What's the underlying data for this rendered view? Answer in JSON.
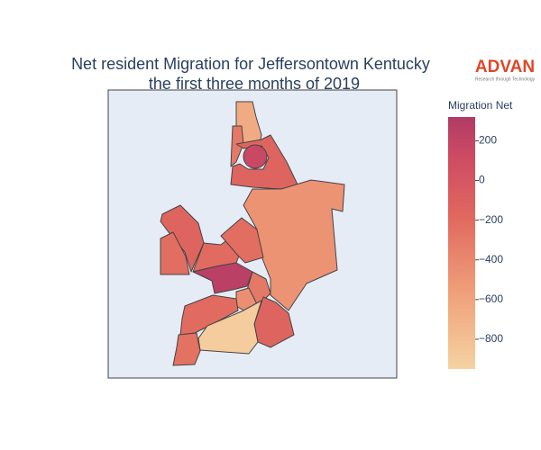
{
  "chart_data": {
    "type": "choropleth",
    "title": [
      "Net resident Migration for Jeffersontown Kentucky",
      "the first three months of 2019"
    ],
    "logo": "ADVAN",
    "logo_tagline": "Research through Technology",
    "colorbar_title": "Migration Net",
    "zlim": [
      -950,
      320
    ],
    "zticks": [
      {
        "value": -800,
        "label": "−800"
      },
      {
        "value": -600,
        "label": "−600"
      },
      {
        "value": -400,
        "label": "−400"
      },
      {
        "value": -200,
        "label": "−200"
      },
      0,
      200
    ],
    "colorscale": [
      [
        0,
        "#f5d3a2"
      ],
      [
        0.3,
        "#f0a07a"
      ],
      [
        0.6,
        "#e0695f"
      ],
      [
        0.85,
        "#cc4a63"
      ],
      [
        1,
        "#b03b66"
      ]
    ],
    "values": [
      -650,
      -300,
      150,
      -150,
      -480,
      -150,
      -220,
      -200,
      -220,
      250,
      -300,
      -450,
      -200,
      -150,
      -900,
      -250
    ]
  }
}
